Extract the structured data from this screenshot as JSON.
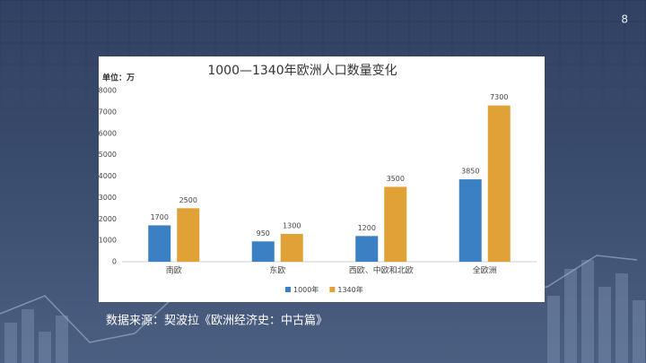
{
  "page_number": "8",
  "source": "数据来源：契波拉《欧洲经济史：中古篇》",
  "chart_data": {
    "type": "bar",
    "title": "1000—1340年欧洲人口数量变化",
    "unit_label": "单位：万",
    "categories": [
      "南欧",
      "东欧",
      "西欧、中欧和北欧",
      "全欧洲"
    ],
    "series": [
      {
        "name": "1000年",
        "color": "#3a80c2",
        "values": [
          1700,
          950,
          1200,
          3850
        ]
      },
      {
        "name": "1340年",
        "color": "#e0a236",
        "values": [
          2500,
          1300,
          3500,
          7300
        ]
      }
    ],
    "ylim": [
      0,
      8000
    ],
    "yticks": [
      0,
      1000,
      2000,
      3000,
      4000,
      5000,
      6000,
      7000,
      8000
    ],
    "grid": false,
    "legend": "bottom"
  }
}
